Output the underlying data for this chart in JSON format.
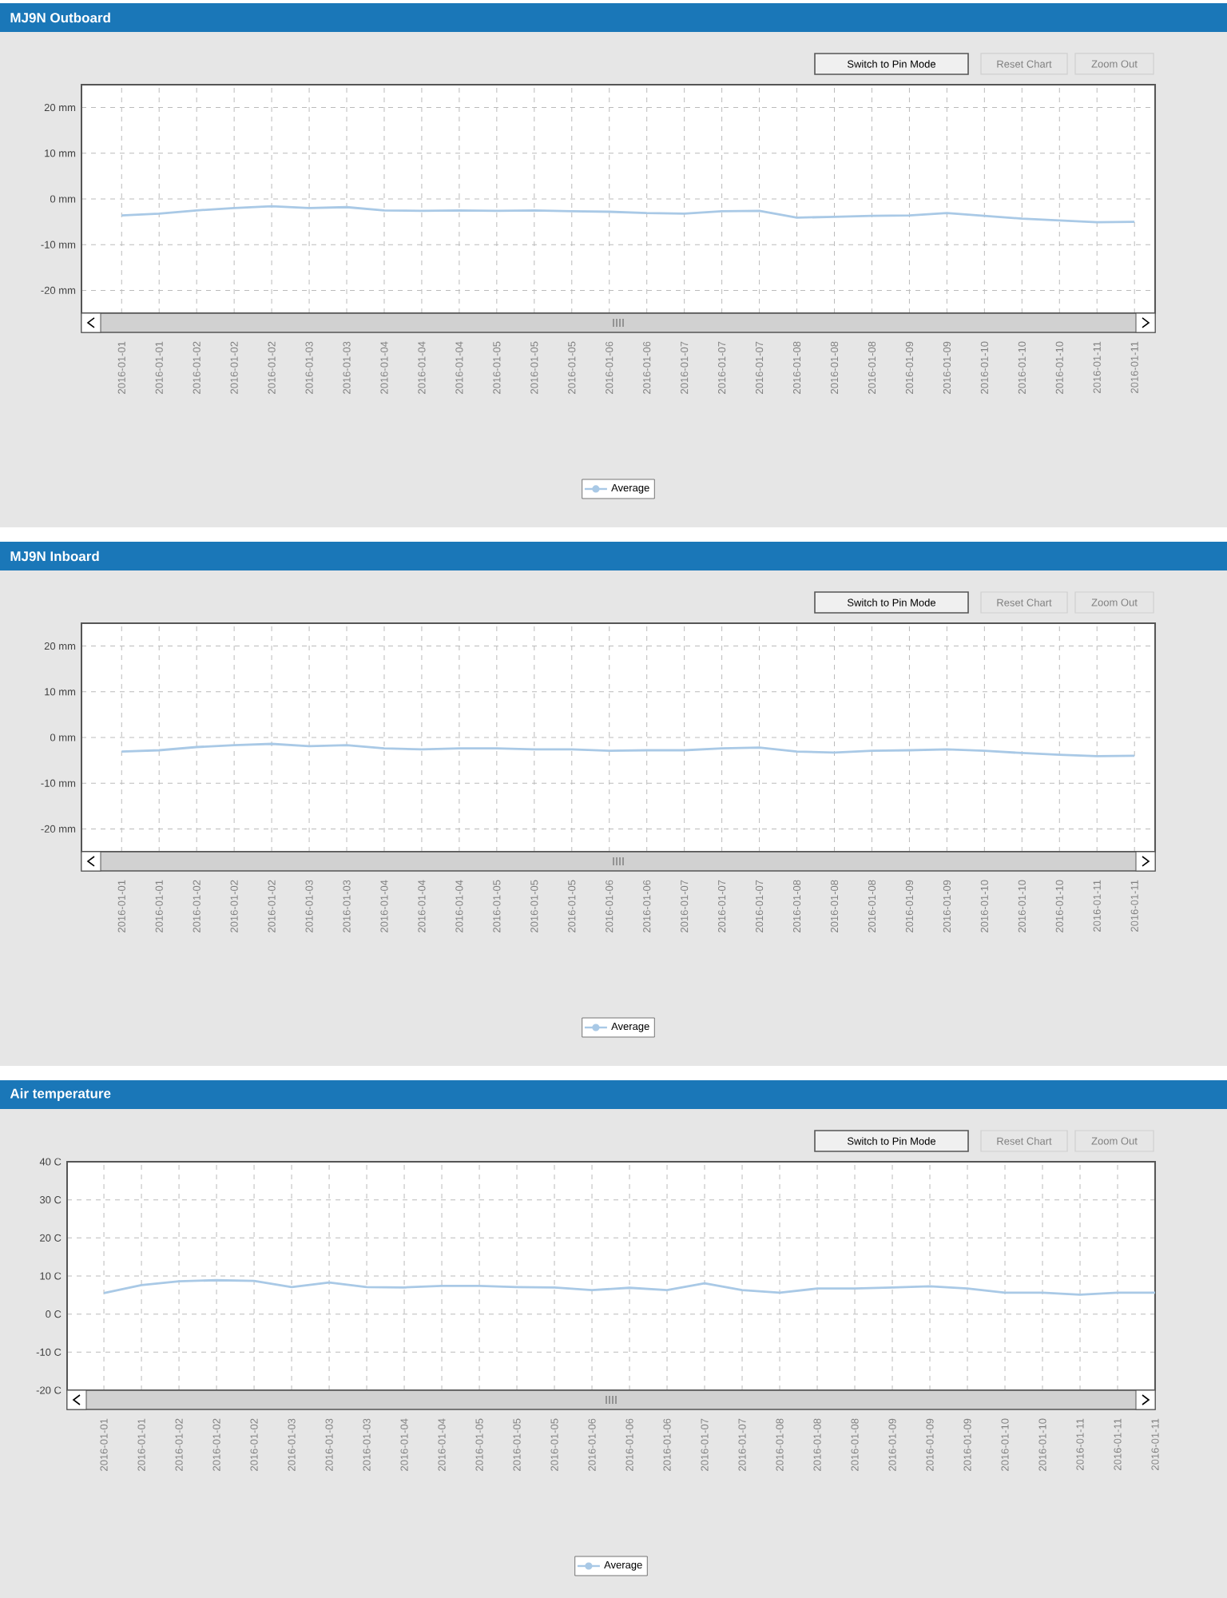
{
  "chart_data": [
    {
      "type": "line",
      "title": "MJ9N Outboard",
      "categories": [
        "2016-01-01",
        "2016-01-01",
        "2016-01-02",
        "2016-01-02",
        "2016-01-02",
        "2016-01-03",
        "2016-01-03",
        "2016-01-04",
        "2016-01-04",
        "2016-01-04",
        "2016-01-05",
        "2016-01-05",
        "2016-01-05",
        "2016-01-06",
        "2016-01-06",
        "2016-01-07",
        "2016-01-07",
        "2016-01-07",
        "2016-01-08",
        "2016-01-08",
        "2016-01-08",
        "2016-01-09",
        "2016-01-09",
        "2016-01-10",
        "2016-01-10",
        "2016-01-10",
        "2016-01-11",
        "2016-01-11"
      ],
      "series": [
        {
          "name": "Average",
          "color": "#a9c9e6",
          "values": [
            -3.6,
            -3.2,
            -2.5,
            -2.0,
            -1.6,
            -2.0,
            -1.8,
            -2.5,
            -2.6,
            -2.5,
            -2.6,
            -2.5,
            -2.7,
            -2.8,
            -3.1,
            -3.2,
            -2.7,
            -2.6,
            -4.1,
            -3.9,
            -3.7,
            -3.6,
            -3.1,
            -3.7,
            -4.3,
            -4.7,
            -5.1,
            -5.0
          ]
        }
      ],
      "ylim": [
        -25,
        25
      ],
      "yticks": [
        {
          "value": 20,
          "label": "20 mm"
        },
        {
          "value": 10,
          "label": "10 mm"
        },
        {
          "value": 0,
          "label": "0 mm"
        },
        {
          "value": -10,
          "label": "-10 mm"
        },
        {
          "value": -20,
          "label": "-20 mm"
        }
      ],
      "grid": true,
      "legend": "bottom",
      "annotations": [
        "Switch to Pin Mode",
        "Reset Chart",
        "Zoom Out"
      ]
    },
    {
      "type": "line",
      "title": "MJ9N Inboard",
      "categories": [
        "2016-01-01",
        "2016-01-01",
        "2016-01-02",
        "2016-01-02",
        "2016-01-02",
        "2016-01-03",
        "2016-01-03",
        "2016-01-04",
        "2016-01-04",
        "2016-01-04",
        "2016-01-05",
        "2016-01-05",
        "2016-01-05",
        "2016-01-06",
        "2016-01-06",
        "2016-01-07",
        "2016-01-07",
        "2016-01-07",
        "2016-01-08",
        "2016-01-08",
        "2016-01-08",
        "2016-01-09",
        "2016-01-09",
        "2016-01-10",
        "2016-01-10",
        "2016-01-10",
        "2016-01-11",
        "2016-01-11"
      ],
      "series": [
        {
          "name": "Average",
          "color": "#a9c9e6",
          "values": [
            -3.1,
            -2.8,
            -2.1,
            -1.7,
            -1.4,
            -1.9,
            -1.7,
            -2.4,
            -2.6,
            -2.4,
            -2.4,
            -2.6,
            -2.6,
            -2.9,
            -2.8,
            -2.8,
            -2.4,
            -2.2,
            -3.1,
            -3.3,
            -2.9,
            -2.8,
            -2.6,
            -2.9,
            -3.4,
            -3.8,
            -4.1,
            -4.0
          ]
        }
      ],
      "ylim": [
        -25,
        25
      ],
      "yticks": [
        {
          "value": 20,
          "label": "20 mm"
        },
        {
          "value": 10,
          "label": "10 mm"
        },
        {
          "value": 0,
          "label": "0 mm"
        },
        {
          "value": -10,
          "label": "-10 mm"
        },
        {
          "value": -20,
          "label": "-20 mm"
        }
      ],
      "grid": true,
      "legend": "bottom",
      "annotations": [
        "Switch to Pin Mode",
        "Reset Chart",
        "Zoom Out"
      ]
    },
    {
      "type": "line",
      "title": "Air temperature",
      "categories": [
        "2016-01-01",
        "2016-01-01",
        "2016-01-02",
        "2016-01-02",
        "2016-01-02",
        "2016-01-03",
        "2016-01-03",
        "2016-01-03",
        "2016-01-04",
        "2016-01-04",
        "2016-01-05",
        "2016-01-05",
        "2016-01-05",
        "2016-01-06",
        "2016-01-06",
        "2016-01-06",
        "2016-01-07",
        "2016-01-07",
        "2016-01-08",
        "2016-01-08",
        "2016-01-08",
        "2016-01-09",
        "2016-01-09",
        "2016-01-09",
        "2016-01-10",
        "2016-01-10",
        "2016-01-11",
        "2016-01-11",
        "2016-01-11"
      ],
      "series": [
        {
          "name": "Average",
          "color": "#a9c9e6",
          "values": [
            5.5,
            7.6,
            8.6,
            8.9,
            8.7,
            7.1,
            8.3,
            7.1,
            7.0,
            7.4,
            7.4,
            7.1,
            7.0,
            6.3,
            6.9,
            6.3,
            8.1,
            6.3,
            5.6,
            6.7,
            6.7,
            7.0,
            7.3,
            6.7,
            5.6,
            5.6,
            5.1,
            5.6,
            5.6
          ]
        }
      ],
      "ylim": [
        -20,
        40
      ],
      "yticks": [
        {
          "value": 40,
          "label": "40 C"
        },
        {
          "value": 30,
          "label": "30 C"
        },
        {
          "value": 20,
          "label": "20 C"
        },
        {
          "value": 10,
          "label": "10 C"
        },
        {
          "value": 0,
          "label": "0 C"
        },
        {
          "value": -10,
          "label": "-10 C"
        },
        {
          "value": -20,
          "label": "-20 C"
        }
      ],
      "grid": true,
      "legend": "bottom",
      "annotations": [
        "Switch to Pin Mode",
        "Reset Chart",
        "Zoom Out"
      ]
    }
  ]
}
